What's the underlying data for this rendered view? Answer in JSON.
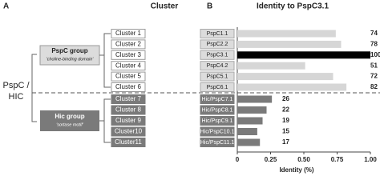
{
  "panel_a": {
    "label": "A",
    "title": "Cluster",
    "side_label": [
      "PspC /",
      "HIC"
    ],
    "groups": [
      {
        "title": "PspC group",
        "subtitle": "'choline-binding domain'"
      },
      {
        "title": "Hic group",
        "subtitle": "'sortase motif'"
      }
    ],
    "clusters": [
      "Cluster 1",
      "Cluster 2",
      "Cluster 3",
      "Cluster 4",
      "Cluster 5",
      "Cluster 6",
      "Cluster 7",
      "Cluster 8",
      "Cluster 9",
      "Cluster10",
      "Cluster11"
    ]
  },
  "chart_data": {
    "type": "bar",
    "orientation": "horizontal",
    "panel_label": "B",
    "title": "Identity to PspC3.1",
    "xlabel": "Identity (%)",
    "categories": [
      "PspC1.1",
      "PspC2.2",
      "PspC3.1",
      "PspC4.2",
      "PspC5.1",
      "PspC6.1",
      "Hic/PspC7.1",
      "Hic/PspC8.1",
      "Hic/PspC9.1",
      "Hic/PspC10.1",
      "Hic/PspC11.1"
    ],
    "values": [
      0.74,
      0.78,
      1.0,
      0.51,
      0.72,
      0.82,
      0.26,
      0.22,
      0.19,
      0.15,
      0.17
    ],
    "value_labels": [
      "74",
      "78",
      "100",
      "51",
      "72",
      "82",
      "26",
      "22",
      "19",
      "15",
      "17"
    ],
    "colors": [
      "#d6d6d6",
      "#d6d6d6",
      "#000000",
      "#d6d6d6",
      "#d6d6d6",
      "#d6d6d6",
      "#7a7a7a",
      "#7a7a7a",
      "#7a7a7a",
      "#7a7a7a",
      "#7a7a7a"
    ],
    "xlim": [
      0,
      1
    ],
    "xticks": [
      0,
      0.25,
      {
        "value": 0.5,
        "label": "0.50"
      },
      0.75,
      {
        "value": 1.0,
        "label": "1.00"
      }
    ]
  }
}
